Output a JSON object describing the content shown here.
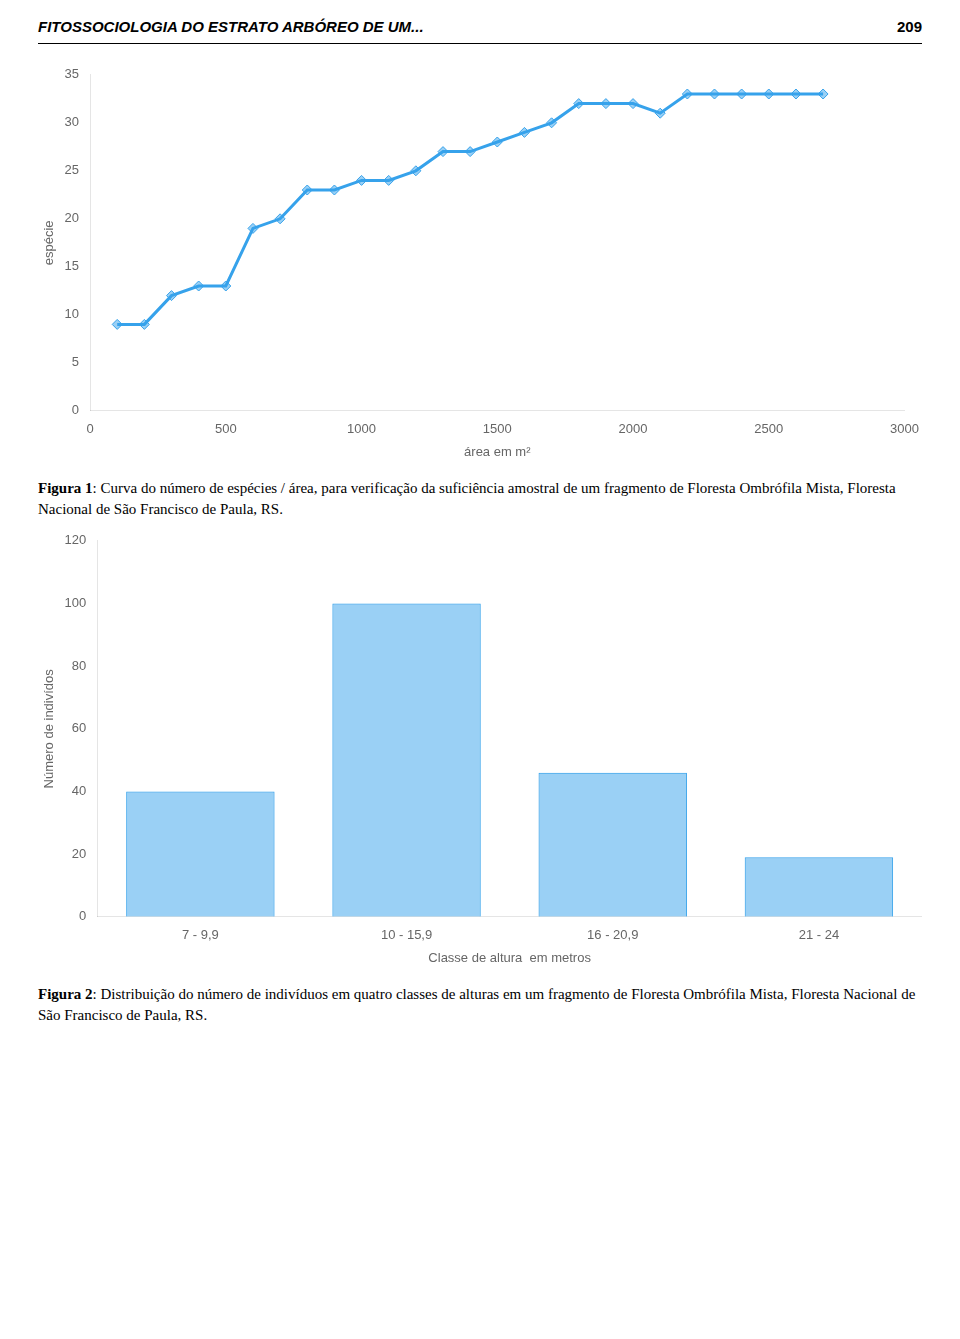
{
  "annotations": [
    "FITOSSOCIOLOGIA DO ESTRATO ARBÓREO DE UM...",
    "209"
  ],
  "chart_data": [
    {
      "type": "line",
      "x": [
        100,
        200,
        300,
        400,
        500,
        600,
        700,
        800,
        900,
        1000,
        1100,
        1200,
        1300,
        1400,
        1500,
        1600,
        1700,
        1800,
        1900,
        2000,
        2100,
        2200,
        2300,
        2400,
        2500,
        2600,
        2700
      ],
      "values": [
        9,
        9,
        12,
        13,
        13,
        19,
        20,
        23,
        23,
        24,
        24,
        25,
        27,
        27,
        28,
        29,
        30,
        32,
        32,
        32,
        31,
        33,
        33,
        33,
        33,
        33,
        33
      ],
      "xlabel": "área em m²",
      "ylabel": "espécie",
      "xlim": [
        0,
        3000
      ],
      "ylim": [
        0,
        35
      ],
      "xticks": [
        0,
        500,
        1000,
        1500,
        2000,
        2500,
        3000
      ],
      "yticks": [
        0,
        5,
        10,
        15,
        20,
        25,
        30,
        35
      ],
      "marker": "diamond",
      "grid": false,
      "annotations": [
        "Figura 1: Curva do número de espécies / área, para verificação da suficiência amostral de um fragmento de Floresta Ombrófila Mista, Floresta Nacional de São Francisco de Paula, RS."
      ]
    },
    {
      "type": "bar",
      "categories": [
        "7 - 9,9",
        "10 - 15,9",
        "16 - 20,9",
        "21 - 24"
      ],
      "values": [
        40,
        100,
        46,
        19
      ],
      "xlabel": "Classe de altura  em metros",
      "ylabel": "Número de indivídos",
      "ylim": [
        0,
        120
      ],
      "yticks": [
        0,
        20,
        40,
        60,
        80,
        100,
        120
      ],
      "grid": false,
      "annotations": [
        "Figura 2: Distribuição do número de indivíduos em quatro classes de alturas em um fragmento de Floresta Ombrófila Mista, Floresta Nacional de São Francisco de Paula, RS."
      ]
    }
  ]
}
